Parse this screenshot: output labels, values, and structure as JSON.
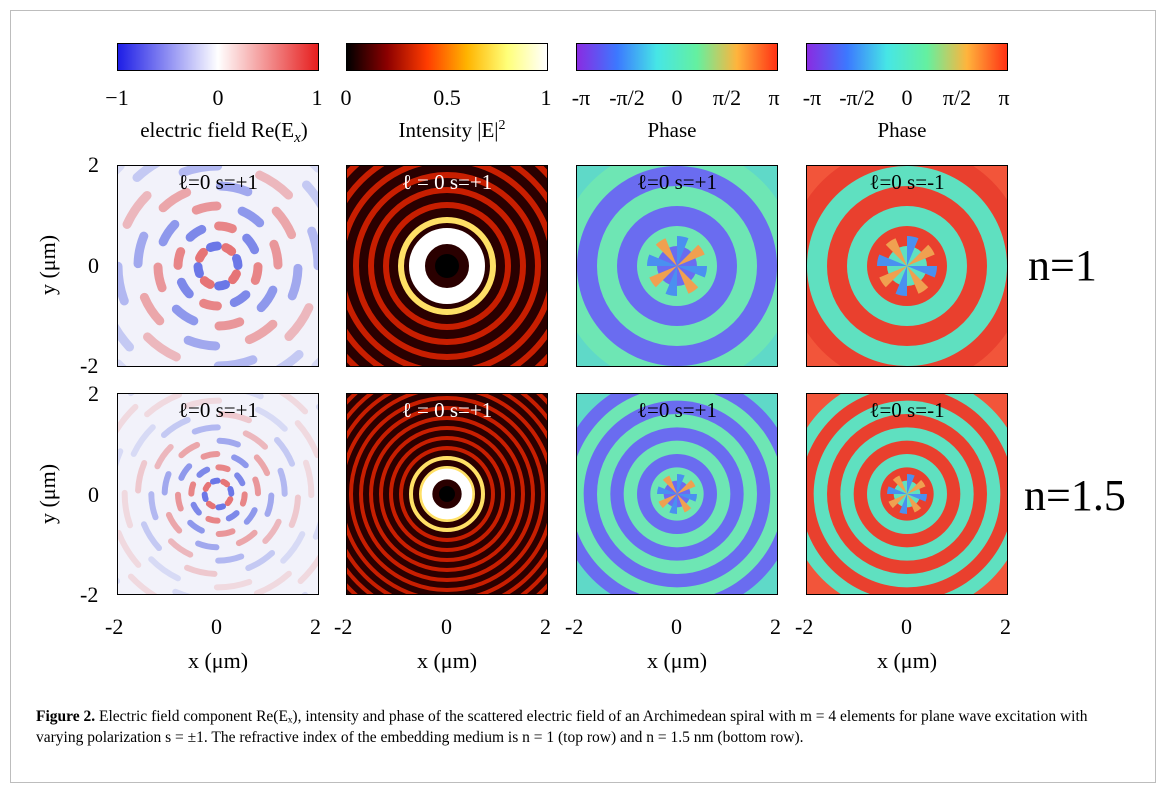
{
  "colorbars": [
    {
      "ticks": [
        "−1",
        "0",
        "1"
      ],
      "label": "electric field Re(E",
      "label_sub": "x",
      "label_end": ")",
      "stops": [
        "#1e1ee6",
        "#ffffff",
        "#e61e1e"
      ]
    },
    {
      "ticks": [
        "0",
        "0.5",
        "1"
      ],
      "label": "Intensity |E|",
      "label_sup": "2",
      "stops": [
        "#000000",
        "#8b0000",
        "#ff3c00",
        "#ffb400",
        "#ffff78",
        "#ffffff"
      ]
    },
    {
      "ticks": [
        "-π",
        "-π/2",
        "0",
        "π/2",
        "π"
      ],
      "label": "Phase",
      "stops": [
        "#8a2be2",
        "#3c78ff",
        "#46e6e6",
        "#64f0a0",
        "#ffb43c",
        "#ff3214"
      ]
    },
    {
      "ticks": [
        "-π",
        "-π/2",
        "0",
        "π/2",
        "π"
      ],
      "label": "Phase",
      "stops": [
        "#8a2be2",
        "#3c78ff",
        "#46e6e6",
        "#64f0a0",
        "#ffb43c",
        "#ff3214"
      ]
    }
  ],
  "rows": [
    {
      "row_label": "n=1",
      "panels": [
        "ℓ=0 s=+1",
        "ℓ = 0 s=+1",
        "ℓ=0 s=+1",
        "ℓ=0 s=-1"
      ]
    },
    {
      "row_label": "n=1.5",
      "panels": [
        "ℓ=0 s=+1",
        "ℓ = 0 s=+1",
        "ℓ=0 s=+1",
        "ℓ=0 s=-1"
      ]
    }
  ],
  "axes": {
    "y_ticks": [
      "2",
      "0",
      "-2"
    ],
    "x_ticks": [
      "-2",
      "0",
      "2"
    ],
    "y_label": "y (μm)",
    "x_label": "x (μm)"
  },
  "caption": {
    "bold": "Figure 2.",
    "text": " Electric field component Re(Eₓ), intensity and phase of the scattered electric field of an Archimedean spiral with m = 4 elements for plane wave excitation with varying polarization s = ±1. The refractive index of the embedding medium is n = 1 (top row) and n = 1.5 nm (bottom row)."
  }
}
